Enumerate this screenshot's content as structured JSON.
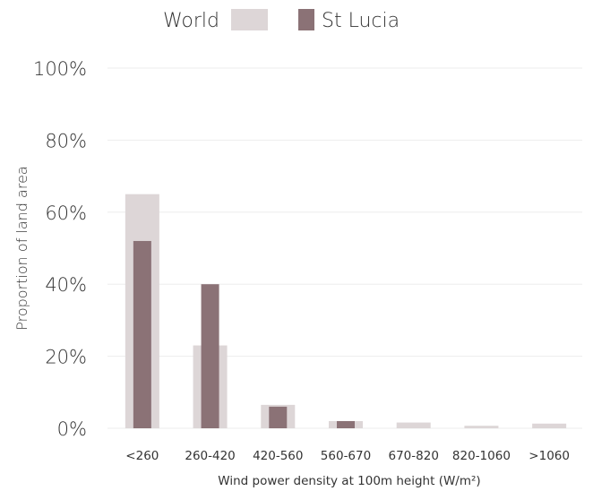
{
  "chart_data": {
    "type": "bar",
    "categories": [
      "<260",
      "260-420",
      "420-560",
      "560-670",
      "670-820",
      "820-1060",
      ">1060"
    ],
    "series": [
      {
        "name": "World",
        "values": [
          65,
          23,
          6.5,
          2,
          1.6,
          0.7,
          1.3
        ],
        "color": "#ddd6d7"
      },
      {
        "name": "St Lucia",
        "values": [
          52,
          40,
          6,
          2,
          0,
          0,
          0
        ],
        "color": "#8b7276"
      }
    ],
    "ylim": [
      0,
      100
    ],
    "yticks": [
      0,
      20,
      40,
      60,
      80,
      100
    ],
    "ytick_labels": [
      "0%",
      "20%",
      "40%",
      "60%",
      "80%",
      "100%"
    ],
    "xlabel": "Wind power density at 100m height (W/m²)",
    "ylabel": "Proportion of land area",
    "grid": true,
    "legend_position": "top-center"
  }
}
